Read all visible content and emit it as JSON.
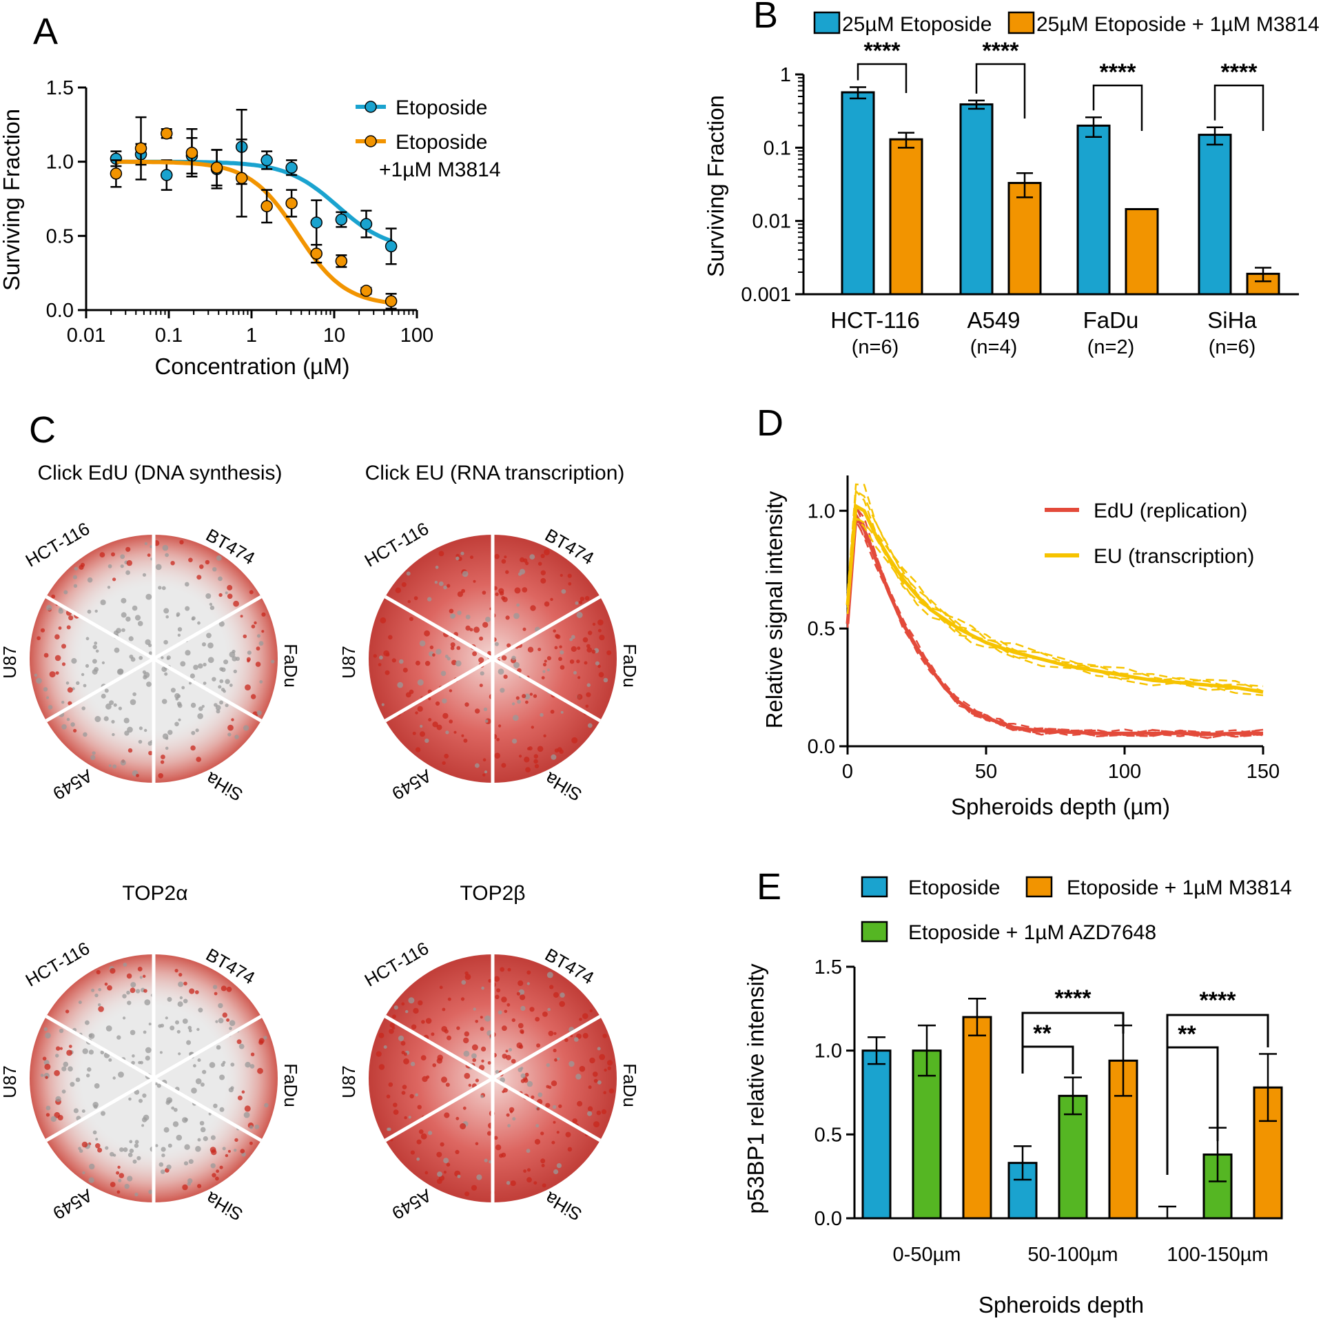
{
  "colors": {
    "blue": "#1aa3cf",
    "orange": "#f29400",
    "green": "#55b623",
    "red": "#e34a3a",
    "yellow": "#f6c300"
  },
  "panels": {
    "A": "A",
    "B": "B",
    "C": "C",
    "D": "D",
    "E": "E"
  },
  "chart_data": [
    {
      "id": "A",
      "type": "scatter",
      "xlabel": "Concentration (µM)",
      "ylabel": "Surviving Fraction",
      "xscale": "log",
      "xlim": [
        0.01,
        100
      ],
      "ylim": [
        0,
        1.5
      ],
      "xticks": [
        "0.01",
        "0.1",
        "1",
        "10",
        "100"
      ],
      "yticks": [
        "0.0",
        "0.5",
        "1.0",
        "1.5"
      ],
      "series": [
        {
          "name": "Etoposide",
          "color": "blue",
          "x": [
            0.023,
            0.046,
            0.094,
            0.19,
            0.38,
            0.76,
            1.53,
            3.05,
            6.1,
            12.2,
            24.4,
            48.8
          ],
          "y": [
            1.02,
            1.05,
            0.91,
            1.04,
            0.95,
            1.1,
            1.01,
            0.96,
            0.59,
            0.61,
            0.58,
            0.43
          ],
          "err": [
            0.05,
            0.07,
            0.1,
            0.12,
            0.13,
            0.25,
            0.06,
            0.05,
            0.15,
            0.05,
            0.09,
            0.12
          ],
          "fit": {
            "top": 1.0,
            "bottom": 0.4,
            "ic50": 11.0,
            "hill": 1.4
          }
        },
        {
          "name": "Etoposide",
          "name2": "+1µM M3814",
          "color": "orange",
          "x": [
            0.023,
            0.046,
            0.094,
            0.19,
            0.38,
            0.76,
            1.53,
            3.05,
            6.1,
            12.2,
            24.4,
            48.8
          ],
          "y": [
            0.92,
            1.09,
            1.19,
            1.06,
            0.96,
            0.89,
            0.7,
            0.72,
            0.38,
            0.33,
            0.13,
            0.06
          ],
          "err": [
            0.09,
            0.21,
            0.03,
            0.16,
            0.12,
            0.26,
            0.11,
            0.09,
            0.06,
            0.04,
            0.02,
            0.05
          ],
          "fit": {
            "top": 1.0,
            "bottom": 0.03,
            "ic50": 3.6,
            "hill": 1.5
          }
        }
      ]
    },
    {
      "id": "B",
      "type": "bar",
      "ylabel": "Surviving Fraction",
      "yscale": "log",
      "ylim": [
        0.001,
        1
      ],
      "yticks": [
        "1",
        "0.1",
        "0.01",
        "0.001"
      ],
      "categories": [
        "HCT-116",
        "A549",
        "FaDu",
        "SiHa"
      ],
      "sublabels": [
        "(n=6)",
        "(n=4)",
        "(n=2)",
        "(n=6)"
      ],
      "series": [
        {
          "name": "25µM Etoposide",
          "color": "blue",
          "values": [
            0.57,
            0.39,
            0.2,
            0.15
          ],
          "err": [
            0.1,
            0.05,
            0.06,
            0.04
          ]
        },
        {
          "name": "25µM Etoposide + 1µM M3814",
          "color": "orange",
          "values": [
            0.13,
            0.033,
            0.0145,
            0.0019
          ],
          "err": [
            0.03,
            0.012,
            0,
            0.0004
          ]
        }
      ],
      "significance": [
        "****",
        "****",
        "****",
        "****"
      ]
    },
    {
      "id": "C",
      "type": "image-grid",
      "titles": [
        "Click EdU (DNA synthesis)",
        "Click EU (RNA transcription)",
        "TOP2α",
        "TOP2β"
      ],
      "segments": [
        "HCT-116",
        "BT474",
        "FaDu",
        "SiHa",
        "A549",
        "U87"
      ]
    },
    {
      "id": "D",
      "type": "line",
      "xlabel": "Spheroids depth (µm)",
      "ylabel": "Relative signal intensity",
      "xlim": [
        0,
        150
      ],
      "ylim": [
        0,
        1.15
      ],
      "xticks": [
        "0",
        "50",
        "100",
        "150"
      ],
      "yticks": [
        "0.0",
        "0.5",
        "1.0"
      ],
      "series": [
        {
          "name": "EdU (replication)",
          "color": "red",
          "x": [
            0,
            3,
            6,
            10,
            15,
            20,
            25,
            30,
            35,
            40,
            45,
            50,
            55,
            60,
            70,
            80,
            90,
            100,
            110,
            120,
            130,
            140,
            150
          ],
          "y": [
            0.52,
            0.98,
            0.92,
            0.8,
            0.65,
            0.52,
            0.42,
            0.33,
            0.25,
            0.19,
            0.15,
            0.12,
            0.1,
            0.08,
            0.065,
            0.06,
            0.055,
            0.055,
            0.055,
            0.055,
            0.05,
            0.055,
            0.055
          ]
        },
        {
          "name": "EU (transcription)",
          "color": "yellow",
          "x": [
            0,
            3,
            6,
            10,
            15,
            20,
            25,
            30,
            35,
            40,
            45,
            50,
            55,
            60,
            70,
            80,
            90,
            100,
            110,
            120,
            130,
            140,
            150
          ],
          "y": [
            0.6,
            1.02,
            1.0,
            0.9,
            0.8,
            0.71,
            0.64,
            0.58,
            0.54,
            0.5,
            0.47,
            0.44,
            0.42,
            0.4,
            0.37,
            0.34,
            0.32,
            0.3,
            0.28,
            0.27,
            0.26,
            0.25,
            0.23
          ]
        }
      ]
    },
    {
      "id": "E",
      "type": "bar",
      "xlabel": "Spheroids depth",
      "ylabel": "p53BP1 relative intensity",
      "ylim": [
        0,
        1.5
      ],
      "yticks": [
        "0.0",
        "0.5",
        "1.0",
        "1.5"
      ],
      "categories": [
        "0-50µm",
        "50-100µm",
        "100-150µm"
      ],
      "legend": [
        "Etoposide",
        "Etoposide + 1µM M3814",
        "Etoposide + 1µM AZD7648"
      ],
      "series": [
        {
          "name": "Etoposide",
          "color": "blue",
          "values": [
            1.0,
            0.33,
            0.0
          ],
          "err": [
            0.08,
            0.1,
            0.07
          ]
        },
        {
          "name": "Etoposide + 1µM AZD7648",
          "color": "green",
          "values": [
            1.0,
            0.73,
            0.38
          ],
          "err": [
            0.15,
            0.11,
            0.16
          ]
        },
        {
          "name": "Etoposide + 1µM M3814",
          "color": "orange",
          "values": [
            1.2,
            0.94,
            0.78
          ],
          "err": [
            0.11,
            0.21,
            0.2
          ]
        }
      ],
      "significance": [
        [
          "**",
          "****"
        ],
        [
          "**",
          "****"
        ]
      ]
    }
  ]
}
